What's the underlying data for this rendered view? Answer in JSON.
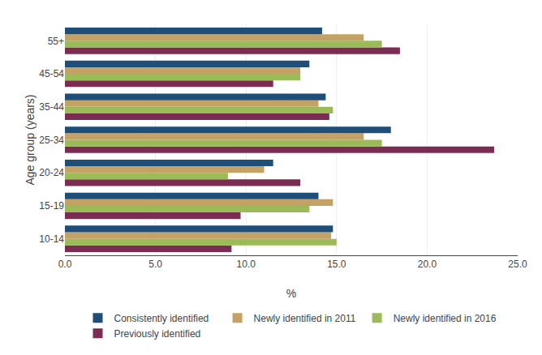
{
  "chart_data": {
    "type": "bar",
    "orientation": "horizontal",
    "categories": [
      "10-14",
      "15-19",
      "20-24",
      "25-34",
      "35-44",
      "45-54",
      "55+"
    ],
    "series": [
      {
        "name": "Consistently identified",
        "color": "#1F4E79",
        "values": [
          14.8,
          14.0,
          11.5,
          18.0,
          14.4,
          13.5,
          14.2
        ]
      },
      {
        "name": "Newly identified in 2011",
        "color": "#C4A265",
        "values": [
          14.7,
          14.8,
          11.0,
          16.5,
          14.0,
          13.0,
          16.5
        ]
      },
      {
        "name": "Newly identified in 2016",
        "color": "#9BBB59",
        "values": [
          15.0,
          13.5,
          9.0,
          17.5,
          14.8,
          13.0,
          17.5
        ]
      },
      {
        "name": "Previously identified",
        "color": "#7B2C52",
        "values": [
          9.2,
          9.7,
          13.0,
          23.7,
          14.6,
          11.5,
          18.5
        ]
      }
    ],
    "xlabel": "%",
    "ylabel": "Age group (years)",
    "xlim": [
      0,
      25.0
    ],
    "xticks": [
      {
        "value": 0.0,
        "label": "0.0"
      },
      {
        "value": 5.0,
        "label": "5.0"
      },
      {
        "value": 10.0,
        "label": "10.0"
      },
      {
        "value": 15.0,
        "label": "15.0"
      },
      {
        "value": 20.0,
        "label": "20.0"
      },
      {
        "value": 25.0,
        "label": "25.0"
      }
    ],
    "grid": true,
    "legend": "bottom"
  }
}
